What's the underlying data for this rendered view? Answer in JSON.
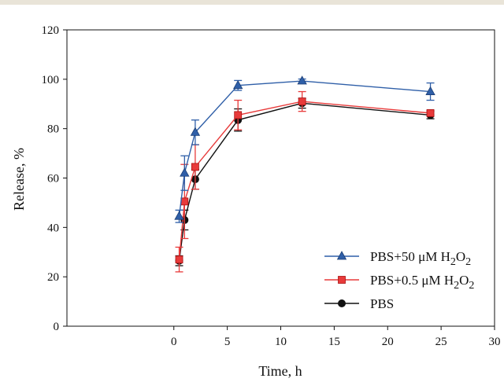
{
  "chart_data": {
    "type": "line",
    "xlabel": "Time, h",
    "ylabel": "Release, %",
    "xlim": [
      -10,
      30
    ],
    "ylim": [
      0,
      120
    ],
    "x_ticks": [
      "0",
      "5",
      "10",
      "15",
      "20",
      "25",
      "30"
    ],
    "y_ticks": [
      "0",
      "20",
      "40",
      "60",
      "80",
      "100",
      "120"
    ],
    "legend_position": "bottom-right",
    "x": [
      0.5,
      1,
      2,
      6,
      12,
      24
    ],
    "series": [
      {
        "name": "PBS+50 μM H2O2",
        "name_base": "PBS+50 μM H",
        "name_sub1": "2",
        "name_mid": "O",
        "name_sub2": "2",
        "color": "#2f5fa8",
        "marker": "triangle",
        "values": [
          44.5,
          62,
          78.5,
          97.5,
          99.3,
          95
        ],
        "errors": [
          2.5,
          7,
          5,
          2,
          0.8,
          3.5
        ]
      },
      {
        "name": "PBS+0.5 μM H2O2",
        "name_base": "PBS+0.5 μM H",
        "name_sub1": "2",
        "name_mid": "O",
        "name_sub2": "2",
        "color": "#e83a3a",
        "marker": "square",
        "values": [
          27,
          50.5,
          64.5,
          85.5,
          91,
          86.3
        ],
        "errors": [
          5,
          15,
          9,
          6,
          4,
          1
        ]
      },
      {
        "name": "PBS",
        "name_base": "PBS",
        "name_sub1": "",
        "name_mid": "",
        "name_sub2": "",
        "color": "#111111",
        "marker": "circle",
        "values": [
          26.5,
          43,
          59.5,
          83.5,
          90.3,
          85.5
        ],
        "errors": [
          2,
          4,
          4,
          4.5,
          2,
          1.5
        ]
      }
    ]
  }
}
